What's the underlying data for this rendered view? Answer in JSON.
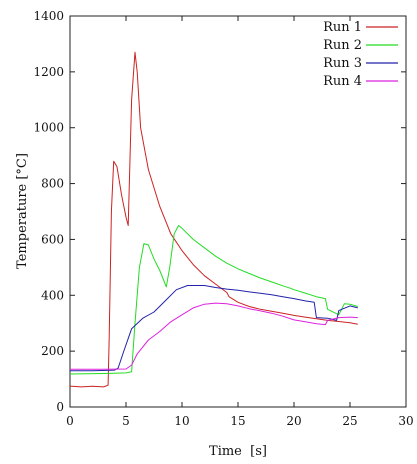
{
  "chart_data": {
    "type": "line",
    "title": "",
    "xlabel": "Time  [s]",
    "ylabel": "Temperature [°C]",
    "xlim": [
      0,
      30
    ],
    "ylim": [
      0,
      1400
    ],
    "xticks": [
      "0",
      "5",
      "10",
      "15",
      "20",
      "25",
      "30"
    ],
    "yticks": [
      "0",
      "200",
      "400",
      "600",
      "800",
      "1000",
      "1200",
      "1400"
    ],
    "grid": false,
    "legend": "top-right",
    "series": [
      {
        "name": "Run  1",
        "color": "#cc2222",
        "points": [
          [
            0,
            75
          ],
          [
            1,
            72
          ],
          [
            2,
            74
          ],
          [
            3,
            72
          ],
          [
            3.4,
            78
          ],
          [
            3.5,
            250
          ],
          [
            3.7,
            700
          ],
          [
            3.9,
            880
          ],
          [
            4.2,
            860
          ],
          [
            4.6,
            760
          ],
          [
            5,
            680
          ],
          [
            5.2,
            650
          ],
          [
            5.5,
            1100
          ],
          [
            5.8,
            1270
          ],
          [
            6,
            1200
          ],
          [
            6.3,
            1000
          ],
          [
            7,
            850
          ],
          [
            8,
            720
          ],
          [
            9,
            620
          ],
          [
            10,
            560
          ],
          [
            11,
            510
          ],
          [
            12,
            470
          ],
          [
            13,
            440
          ],
          [
            14,
            410
          ],
          [
            14.2,
            395
          ],
          [
            15,
            375
          ],
          [
            16,
            360
          ],
          [
            17,
            350
          ],
          [
            18,
            343
          ],
          [
            19,
            336
          ],
          [
            20,
            328
          ],
          [
            21,
            322
          ],
          [
            22,
            316
          ],
          [
            23,
            310
          ],
          [
            24,
            306
          ],
          [
            25,
            302
          ],
          [
            25.7,
            296
          ]
        ]
      },
      {
        "name": "Run  2",
        "color": "#22dd22",
        "points": [
          [
            0,
            118
          ],
          [
            3,
            120
          ],
          [
            5,
            122
          ],
          [
            5.5,
            126
          ],
          [
            5.8,
            300
          ],
          [
            6.2,
            500
          ],
          [
            6.6,
            585
          ],
          [
            7,
            580
          ],
          [
            7.5,
            530
          ],
          [
            8,
            490
          ],
          [
            8.3,
            460
          ],
          [
            8.6,
            430
          ],
          [
            8.9,
            500
          ],
          [
            9.3,
            620
          ],
          [
            9.7,
            650
          ],
          [
            10,
            640
          ],
          [
            11,
            600
          ],
          [
            12,
            570
          ],
          [
            13,
            540
          ],
          [
            14,
            515
          ],
          [
            15,
            495
          ],
          [
            16,
            478
          ],
          [
            17,
            462
          ],
          [
            18,
            448
          ],
          [
            19,
            434
          ],
          [
            19.7,
            425
          ],
          [
            20,
            420
          ],
          [
            21,
            408
          ],
          [
            22,
            395
          ],
          [
            22.8,
            388
          ],
          [
            23,
            350
          ],
          [
            24,
            330
          ],
          [
            24.5,
            370
          ],
          [
            25,
            368
          ],
          [
            25.7,
            360
          ]
        ]
      },
      {
        "name": "Run  3",
        "color": "#2222aa",
        "points": [
          [
            0,
            130
          ],
          [
            2,
            130
          ],
          [
            4,
            132
          ],
          [
            4.3,
            140
          ],
          [
            4.8,
            200
          ],
          [
            5.5,
            280
          ],
          [
            6.5,
            318
          ],
          [
            7.5,
            340
          ],
          [
            8.5,
            380
          ],
          [
            9.5,
            420
          ],
          [
            10.5,
            435
          ],
          [
            12,
            435
          ],
          [
            13,
            428
          ],
          [
            14,
            422
          ],
          [
            15,
            418
          ],
          [
            16,
            412
          ],
          [
            17,
            407
          ],
          [
            18,
            402
          ],
          [
            19,
            395
          ],
          [
            20,
            388
          ],
          [
            21,
            380
          ],
          [
            21.8,
            375
          ],
          [
            22,
            320
          ],
          [
            23,
            318
          ],
          [
            23.8,
            310
          ],
          [
            24,
            345
          ],
          [
            25,
            362
          ],
          [
            25.7,
            355
          ]
        ]
      },
      {
        "name": "Run  4",
        "color": "#dd22dd",
        "points": [
          [
            0,
            135
          ],
          [
            3,
            135
          ],
          [
            5,
            136
          ],
          [
            5.5,
            150
          ],
          [
            6,
            190
          ],
          [
            7,
            240
          ],
          [
            8,
            270
          ],
          [
            9,
            305
          ],
          [
            10,
            330
          ],
          [
            11,
            355
          ],
          [
            12,
            368
          ],
          [
            13,
            372
          ],
          [
            14,
            370
          ],
          [
            15,
            362
          ],
          [
            16,
            352
          ],
          [
            17,
            344
          ],
          [
            18,
            336
          ],
          [
            19,
            325
          ],
          [
            20,
            312
          ],
          [
            21,
            305
          ],
          [
            22,
            298
          ],
          [
            22.8,
            295
          ],
          [
            23,
            310
          ],
          [
            24,
            320
          ],
          [
            25,
            322
          ],
          [
            25.7,
            320
          ]
        ]
      }
    ]
  }
}
